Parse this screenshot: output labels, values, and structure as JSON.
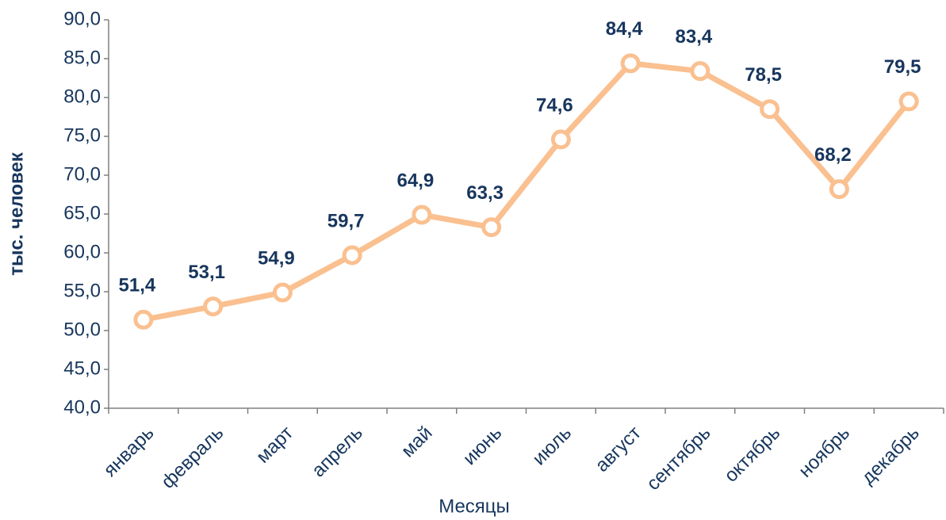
{
  "chart_data": {
    "type": "line",
    "y_label": "тыс. человек",
    "x_label": "Месяцы",
    "categories": [
      "январь",
      "февраль",
      "март",
      "апрель",
      "май",
      "июнь",
      "июль",
      "август",
      "сентябрь",
      "октябрь",
      "ноябрь",
      "декабрь"
    ],
    "values": [
      51.4,
      53.1,
      54.9,
      59.7,
      64.9,
      63.3,
      74.6,
      84.4,
      83.4,
      78.5,
      68.2,
      79.5
    ],
    "value_labels": [
      "51,4",
      "53,1",
      "54,9",
      "59,7",
      "64,9",
      "63,3",
      "74,6",
      "84,4",
      "83,4",
      "78,5",
      "68,2",
      "79,5"
    ],
    "color": "#fac090",
    "ylim": [
      40,
      90
    ],
    "yticks": [
      {
        "value": 40,
        "label": "40,0"
      },
      {
        "value": 45,
        "label": "45,0"
      },
      {
        "value": 50,
        "label": "50,0"
      },
      {
        "value": 55,
        "label": "55,0"
      },
      {
        "value": 60,
        "label": "60,0"
      },
      {
        "value": 65,
        "label": "65,0"
      },
      {
        "value": 70,
        "label": "70,0"
      },
      {
        "value": 75,
        "label": "75,0"
      },
      {
        "value": 80,
        "label": "80,0"
      },
      {
        "value": 85,
        "label": "85,0"
      },
      {
        "value": 90,
        "label": "90,0"
      }
    ]
  }
}
